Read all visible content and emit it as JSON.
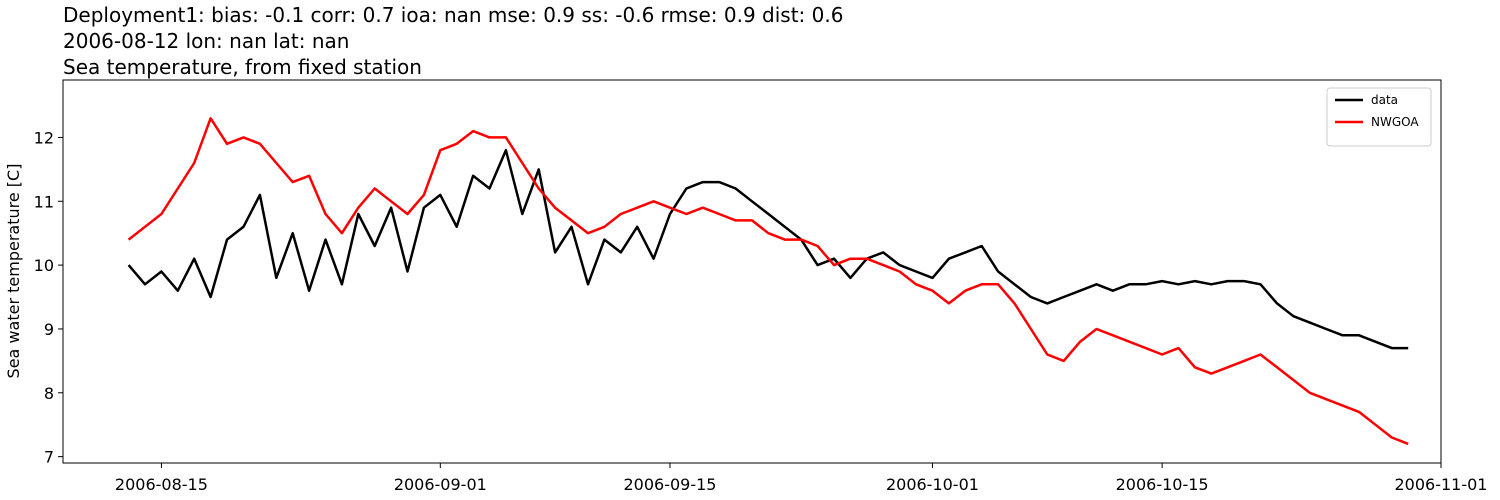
{
  "chart_data": {
    "type": "line",
    "title": "Deployment1: bias: -0.1  corr: 0.7  ioa: nan  mse: 0.9  ss: -0.6  rmse: 0.9  dist: 0.6",
    "subtitle": "2006-08-12 lon: nan lat: nan",
    "subtitle2": "Sea temperature, from fixed station",
    "y_label": "Sea water temperature [C]",
    "x": [
      "2006-08-13",
      "2006-08-14",
      "2006-08-15",
      "2006-08-16",
      "2006-08-17",
      "2006-08-18",
      "2006-08-19",
      "2006-08-20",
      "2006-08-21",
      "2006-08-22",
      "2006-08-23",
      "2006-08-24",
      "2006-08-25",
      "2006-08-26",
      "2006-08-27",
      "2006-08-28",
      "2006-08-29",
      "2006-08-30",
      "2006-08-31",
      "2006-09-01",
      "2006-09-02",
      "2006-09-03",
      "2006-09-04",
      "2006-09-05",
      "2006-09-06",
      "2006-09-07",
      "2006-09-08",
      "2006-09-09",
      "2006-09-10",
      "2006-09-11",
      "2006-09-12",
      "2006-09-13",
      "2006-09-14",
      "2006-09-15",
      "2006-09-16",
      "2006-09-17",
      "2006-09-18",
      "2006-09-19",
      "2006-09-20",
      "2006-09-21",
      "2006-09-22",
      "2006-09-23",
      "2006-09-24",
      "2006-09-25",
      "2006-09-26",
      "2006-09-27",
      "2006-09-28",
      "2006-09-29",
      "2006-09-30",
      "2006-10-01",
      "2006-10-02",
      "2006-10-03",
      "2006-10-04",
      "2006-10-05",
      "2006-10-06",
      "2006-10-07",
      "2006-10-08",
      "2006-10-09",
      "2006-10-10",
      "2006-10-11",
      "2006-10-12",
      "2006-10-13",
      "2006-10-14",
      "2006-10-15",
      "2006-10-16",
      "2006-10-17",
      "2006-10-18",
      "2006-10-19",
      "2006-10-20",
      "2006-10-21",
      "2006-10-22",
      "2006-10-23",
      "2006-10-24",
      "2006-10-25",
      "2006-10-26",
      "2006-10-27",
      "2006-10-28",
      "2006-10-29",
      "2006-10-30"
    ],
    "series": [
      {
        "name": "data",
        "color": "#000000",
        "values": [
          10.0,
          9.7,
          9.9,
          9.6,
          10.1,
          9.5,
          10.4,
          10.6,
          11.1,
          9.8,
          10.5,
          9.6,
          10.4,
          9.7,
          10.8,
          10.3,
          10.9,
          9.9,
          10.9,
          11.1,
          10.6,
          11.4,
          11.2,
          11.8,
          10.8,
          11.5,
          10.2,
          10.6,
          9.7,
          10.4,
          10.2,
          10.6,
          10.1,
          10.8,
          11.2,
          11.3,
          11.3,
          11.2,
          11.0,
          10.8,
          10.6,
          10.4,
          10.0,
          10.1,
          9.8,
          10.1,
          10.2,
          10.0,
          9.9,
          9.8,
          10.1,
          10.2,
          10.3,
          9.9,
          9.7,
          9.5,
          9.4,
          9.5,
          9.6,
          9.7,
          9.6,
          9.7,
          9.7,
          9.75,
          9.7,
          9.75,
          9.7,
          9.75,
          9.75,
          9.7,
          9.4,
          9.2,
          9.1,
          9.0,
          8.9,
          8.9,
          8.8,
          8.7,
          8.7
        ]
      },
      {
        "name": "NWGOA",
        "color": "#ff0000",
        "values": [
          10.4,
          10.6,
          10.8,
          11.2,
          11.6,
          12.3,
          11.9,
          12.0,
          11.9,
          11.6,
          11.3,
          11.4,
          10.8,
          10.5,
          10.9,
          11.2,
          11.0,
          10.8,
          11.1,
          11.8,
          11.9,
          12.1,
          12.0,
          12.0,
          11.6,
          11.2,
          10.9,
          10.7,
          10.5,
          10.6,
          10.8,
          10.9,
          11.0,
          10.9,
          10.8,
          10.9,
          10.8,
          10.7,
          10.7,
          10.5,
          10.4,
          10.4,
          10.3,
          10.0,
          10.1,
          10.1,
          10.0,
          9.9,
          9.7,
          9.6,
          9.4,
          9.6,
          9.7,
          9.7,
          9.4,
          9.0,
          8.6,
          8.5,
          8.8,
          9.0,
          8.9,
          8.8,
          8.7,
          8.6,
          8.7,
          8.4,
          8.3,
          8.4,
          8.5,
          8.6,
          8.4,
          8.2,
          8.0,
          7.9,
          7.8,
          7.7,
          7.5,
          7.3,
          7.2
        ]
      }
    ],
    "xlim": [
      "2006-08-09",
      "2006-11-01"
    ],
    "xticks": [
      "2006-08-15",
      "2006-09-01",
      "2006-09-15",
      "2006-10-01",
      "2006-10-15",
      "2006-11-01"
    ],
    "ylim": [
      6.9,
      12.9
    ],
    "yticks": [
      7,
      8,
      9,
      10,
      11,
      12
    ],
    "legend": "upper right",
    "grid": false
  }
}
